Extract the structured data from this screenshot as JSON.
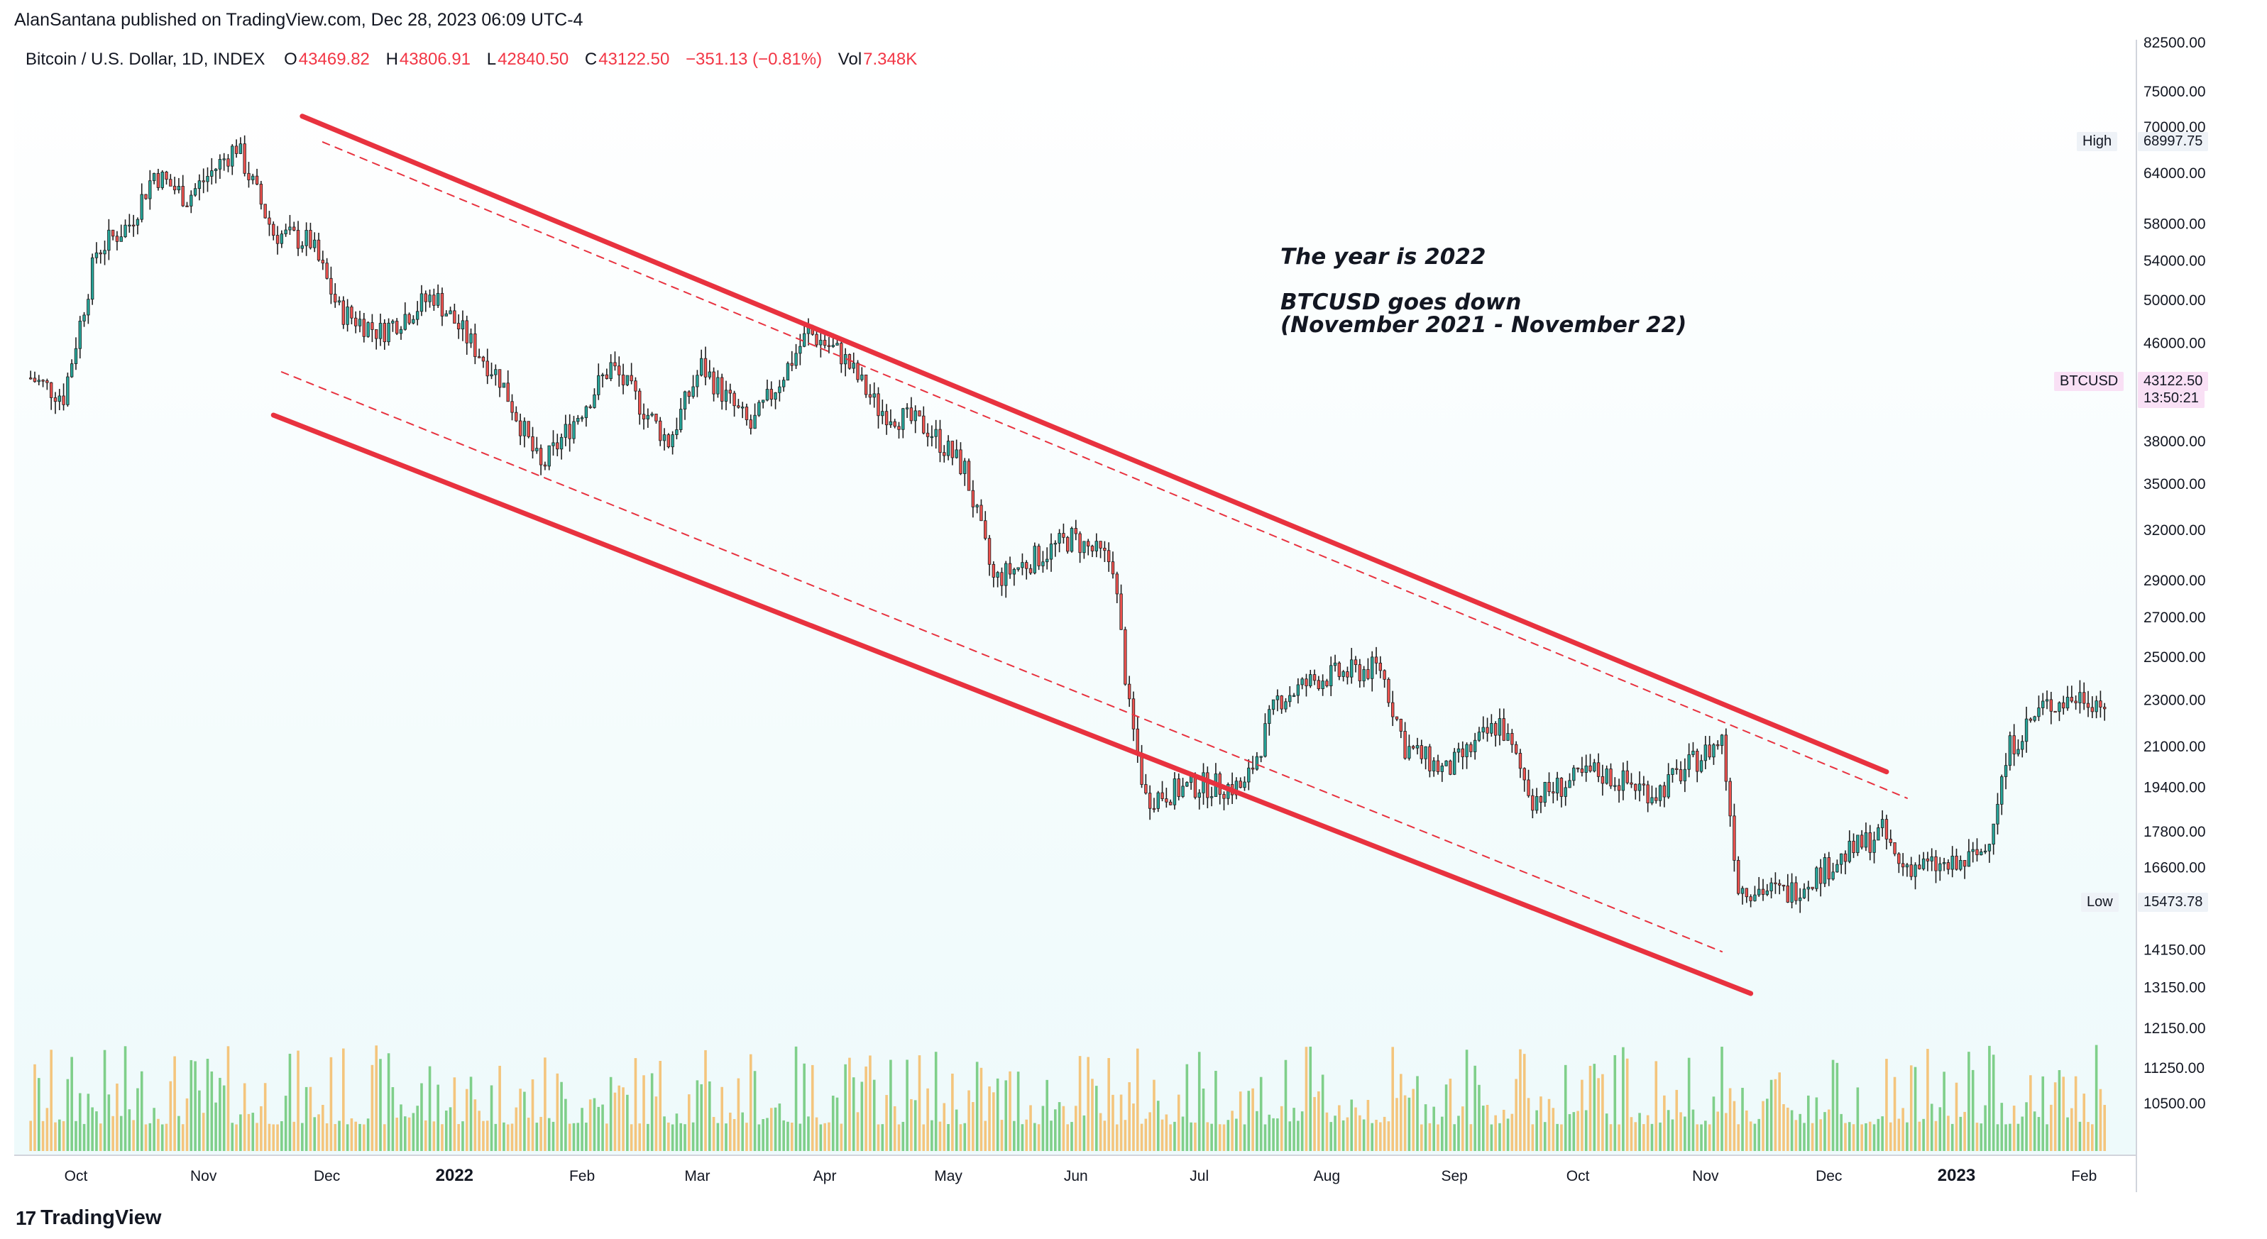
{
  "header": {
    "published": "AlanSantana published on TradingView.com, Dec 28, 2023 06:09 UTC-4"
  },
  "symbol": {
    "name": "Bitcoin / U.S. Dollar, 1D, INDEX",
    "o_label": "O",
    "o": "43469.82",
    "h_label": "H",
    "h": "43806.91",
    "l_label": "L",
    "l": "42840.50",
    "c_label": "C",
    "c": "43122.50",
    "change": "−351.13 (−0.81%)",
    "vol_label": "Vol",
    "vol": "7.348K"
  },
  "annotation": {
    "line1": "The year is 2022",
    "line2": "BTCUSD goes down",
    "line3": "(November 2021 - November 22)"
  },
  "badges": {
    "high_label": "High",
    "high_value": "68997.75",
    "low_label": "Low",
    "low_value": "15473.78",
    "last_symbol": "BTCUSD",
    "last_value": "43122.50",
    "countdown": "13:50:21"
  },
  "footer": {
    "brand": "TradingView",
    "mark": "17"
  },
  "colors": {
    "up": "#26a69a",
    "down": "#ef5350",
    "vol_up": "#7fcf8a",
    "vol_down": "#f4c57d",
    "channel": "#e8323f",
    "bg_top": "#ffffff",
    "bg_bottom": "#eefafb"
  },
  "chart_data": {
    "type": "candlestick",
    "title": "Bitcoin / U.S. Dollar, 1D, INDEX",
    "y_scale": "log",
    "y_ticks": [
      82500,
      75000,
      70000,
      64000,
      58000,
      54000,
      50000,
      46000,
      38000,
      35000,
      32000,
      29000,
      27000,
      25000,
      23000,
      21000,
      19400,
      17800,
      16600,
      15473.78,
      14150,
      13150,
      12150,
      11250,
      10500
    ],
    "y_tick_labels": [
      "82500.00",
      "75000.00",
      "70000.00",
      "64000.00",
      "58000.00",
      "54000.00",
      "50000.00",
      "46000.00",
      "38000.00",
      "35000.00",
      "32000.00",
      "29000.00",
      "27000.00",
      "25000.00",
      "23000.00",
      "21000.00",
      "19400.00",
      "17800.00",
      "16600.00",
      "15473.78",
      "14150.00",
      "13150.00",
      "12150.00",
      "11250.00",
      "10500.00"
    ],
    "x_labels": [
      "Oct",
      "Nov",
      "Dec",
      "2022",
      "Feb",
      "Mar",
      "Apr",
      "May",
      "Jun",
      "Jul",
      "Aug",
      "Sep",
      "Oct",
      "Nov",
      "Dec",
      "2023",
      "Feb"
    ],
    "x_bold": [
      "2022",
      "2023"
    ],
    "ohlc_path_close": [
      [
        "2021-09-20",
        43000
      ],
      [
        "2021-09-28",
        41500
      ],
      [
        "2021-10-06",
        55000
      ],
      [
        "2021-10-14",
        58000
      ],
      [
        "2021-10-20",
        64000
      ],
      [
        "2021-10-28",
        61000
      ],
      [
        "2021-11-09",
        67500
      ],
      [
        "2021-11-18",
        57000
      ],
      [
        "2021-11-27",
        56000
      ],
      [
        "2021-12-04",
        49000
      ],
      [
        "2021-12-14",
        47000
      ],
      [
        "2021-12-27",
        50500
      ],
      [
        "2022-01-05",
        46000
      ],
      [
        "2022-01-12",
        43000
      ],
      [
        "2022-01-22",
        36000
      ],
      [
        "2022-02-08",
        44000
      ],
      [
        "2022-02-22",
        38000
      ],
      [
        "2022-03-02",
        44000
      ],
      [
        "2022-03-14",
        39000
      ],
      [
        "2022-03-28",
        47000
      ],
      [
        "2022-04-05",
        45000
      ],
      [
        "2022-04-14",
        40500
      ],
      [
        "2022-04-26",
        39000
      ],
      [
        "2022-05-05",
        36000
      ],
      [
        "2022-05-12",
        29000
      ],
      [
        "2022-05-31",
        31500
      ],
      [
        "2022-06-10",
        30000
      ],
      [
        "2022-06-14",
        22500
      ],
      [
        "2022-06-18",
        19000
      ],
      [
        "2022-07-01",
        19500
      ],
      [
        "2022-07-12",
        19400
      ],
      [
        "2022-07-20",
        23000
      ],
      [
        "2022-07-30",
        24000
      ],
      [
        "2022-08-14",
        24500
      ],
      [
        "2022-08-20",
        21000
      ],
      [
        "2022-08-30",
        20000
      ],
      [
        "2022-09-12",
        22000
      ],
      [
        "2022-09-20",
        19000
      ],
      [
        "2022-10-05",
        20000
      ],
      [
        "2022-10-20",
        19200
      ],
      [
        "2022-11-05",
        21300
      ],
      [
        "2022-11-09",
        16000
      ],
      [
        "2022-11-21",
        15800
      ],
      [
        "2022-12-05",
        17000
      ],
      [
        "2022-12-14",
        17800
      ],
      [
        "2022-12-18",
        16700
      ],
      [
        "2023-01-01",
        16600
      ],
      [
        "2023-01-08",
        17200
      ],
      [
        "2023-01-14",
        21000
      ],
      [
        "2023-01-22",
        22700
      ],
      [
        "2023-02-01",
        23200
      ],
      [
        "2023-02-06",
        22800
      ]
    ],
    "high": 68997.75,
    "low": 15473.78,
    "last": 43122.5,
    "channel_upper": [
      [
        "2021-11-25",
        71500
      ],
      [
        "2022-12-15",
        20000
      ]
    ],
    "channel_lower": [
      [
        "2021-11-18",
        40000
      ],
      [
        "2022-11-12",
        13000
      ]
    ],
    "channel_upper_dashed": [
      [
        "2021-11-30",
        68000
      ],
      [
        "2022-12-20",
        19000
      ]
    ],
    "channel_lower_dashed": [
      [
        "2021-11-20",
        43500
      ],
      [
        "2022-11-05",
        14100
      ]
    ]
  }
}
